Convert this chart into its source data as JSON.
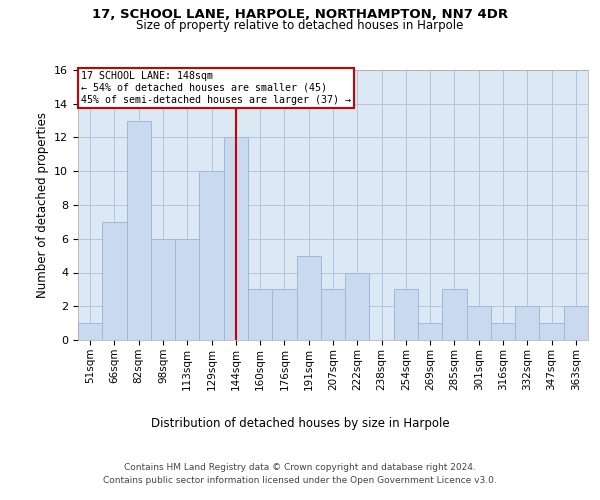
{
  "title1": "17, SCHOOL LANE, HARPOLE, NORTHAMPTON, NN7 4DR",
  "title2": "Size of property relative to detached houses in Harpole",
  "xlabel": "Distribution of detached houses by size in Harpole",
  "ylabel": "Number of detached properties",
  "categories": [
    "51sqm",
    "66sqm",
    "82sqm",
    "98sqm",
    "113sqm",
    "129sqm",
    "144sqm",
    "160sqm",
    "176sqm",
    "191sqm",
    "207sqm",
    "222sqm",
    "238sqm",
    "254sqm",
    "269sqm",
    "285sqm",
    "301sqm",
    "316sqm",
    "332sqm",
    "347sqm",
    "363sqm"
  ],
  "values": [
    1,
    7,
    13,
    6,
    6,
    10,
    12,
    3,
    3,
    5,
    3,
    4,
    0,
    3,
    1,
    3,
    2,
    1,
    2,
    1,
    2
  ],
  "bar_color": "#c9d9f0",
  "bar_edge_color": "#a0b8d8",
  "vline_index": 6,
  "vline_color": "#cc0000",
  "annotation_line1": "17 SCHOOL LANE: 148sqm",
  "annotation_line2": "← 54% of detached houses are smaller (45)",
  "annotation_line3": "45% of semi-detached houses are larger (37) →",
  "annotation_box_color": "#cc0000",
  "ylim": [
    0,
    16
  ],
  "yticks": [
    0,
    2,
    4,
    6,
    8,
    10,
    12,
    14,
    16
  ],
  "grid_color": "#b0c4de",
  "background_color": "#dce9f5",
  "footer_line1": "Contains HM Land Registry data © Crown copyright and database right 2024.",
  "footer_line2": "Contains public sector information licensed under the Open Government Licence v3.0."
}
